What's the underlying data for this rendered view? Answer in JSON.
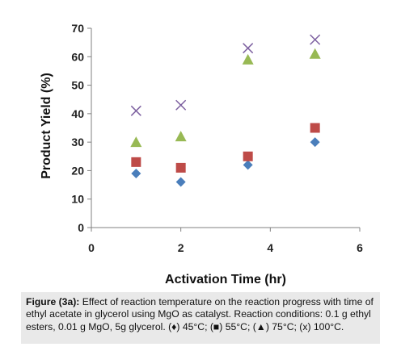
{
  "chart_data": {
    "type": "scatter",
    "title": "",
    "xlabel": "Activation Time (hr)",
    "ylabel": "Product Yield (%)",
    "xlim": [
      0,
      6
    ],
    "ylim": [
      0,
      70
    ],
    "x_ticks": [
      "0",
      "2",
      "4",
      "6"
    ],
    "y_ticks": [
      "0",
      "10",
      "20",
      "30",
      "40",
      "50",
      "60",
      "70"
    ],
    "grid": false,
    "legend": "none",
    "series": [
      {
        "marker": "diamond",
        "color": "#4a7ebb",
        "points": [
          [
            1,
            19
          ],
          [
            2,
            16
          ],
          [
            3.5,
            22
          ],
          [
            5,
            30
          ]
        ]
      },
      {
        "marker": "square",
        "color": "#be4b48",
        "points": [
          [
            1,
            23
          ],
          [
            2,
            21
          ],
          [
            3.5,
            25
          ],
          [
            5,
            35
          ]
        ]
      },
      {
        "marker": "triangle",
        "color": "#98b954",
        "points": [
          [
            1,
            30
          ],
          [
            2,
            32
          ],
          [
            3.5,
            59
          ],
          [
            5,
            61
          ]
        ]
      },
      {
        "marker": "cross",
        "color": "#7d60a0",
        "points": [
          [
            1,
            41
          ],
          [
            2,
            43
          ],
          [
            3.5,
            63
          ],
          [
            5,
            66
          ]
        ]
      }
    ]
  },
  "caption": {
    "label": "Figure (3a):",
    "text": " Effect of reaction temperature on the reaction progress with time of ethyl acetate in glycerol using MgO as catalyst. Reaction conditions: 0.1 g ethyl esters, 0.01 g MgO, 5g glycerol. (♦) 45°C; (■) 55°C; (▲) 75°C; (x) 100°C."
  }
}
